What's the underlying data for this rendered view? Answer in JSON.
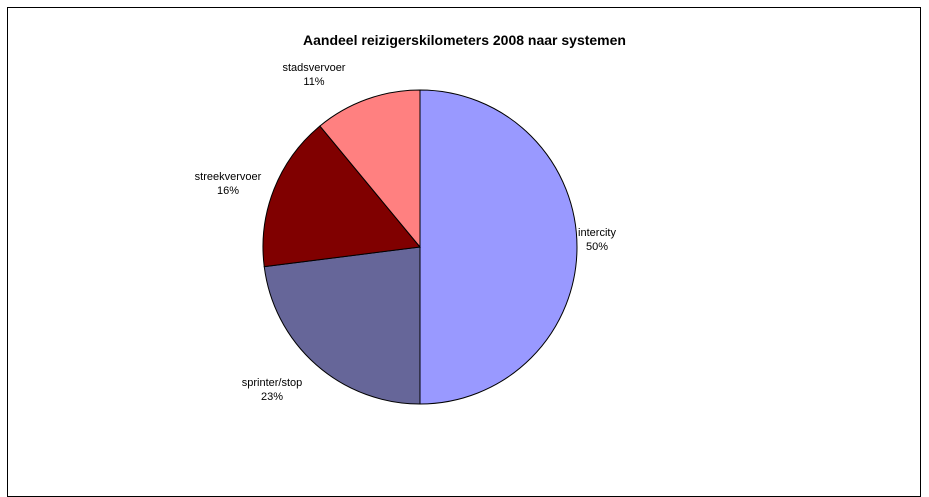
{
  "chart_data": {
    "type": "pie",
    "title": "Aandeel reizigerskilometers 2008 naar systemen",
    "slices": [
      {
        "label": "intercity",
        "value": 50,
        "pct_label": "50%",
        "color": "#9999FF"
      },
      {
        "label": "sprinter/stop",
        "value": 23,
        "pct_label": "23%",
        "color": "#666699"
      },
      {
        "label": "streekvervoer",
        "value": 16,
        "pct_label": "16%",
        "color": "#800000"
      },
      {
        "label": "stadsvervoer",
        "value": 11,
        "pct_label": "11%",
        "color": "#FF8080"
      }
    ],
    "legend": "none"
  }
}
